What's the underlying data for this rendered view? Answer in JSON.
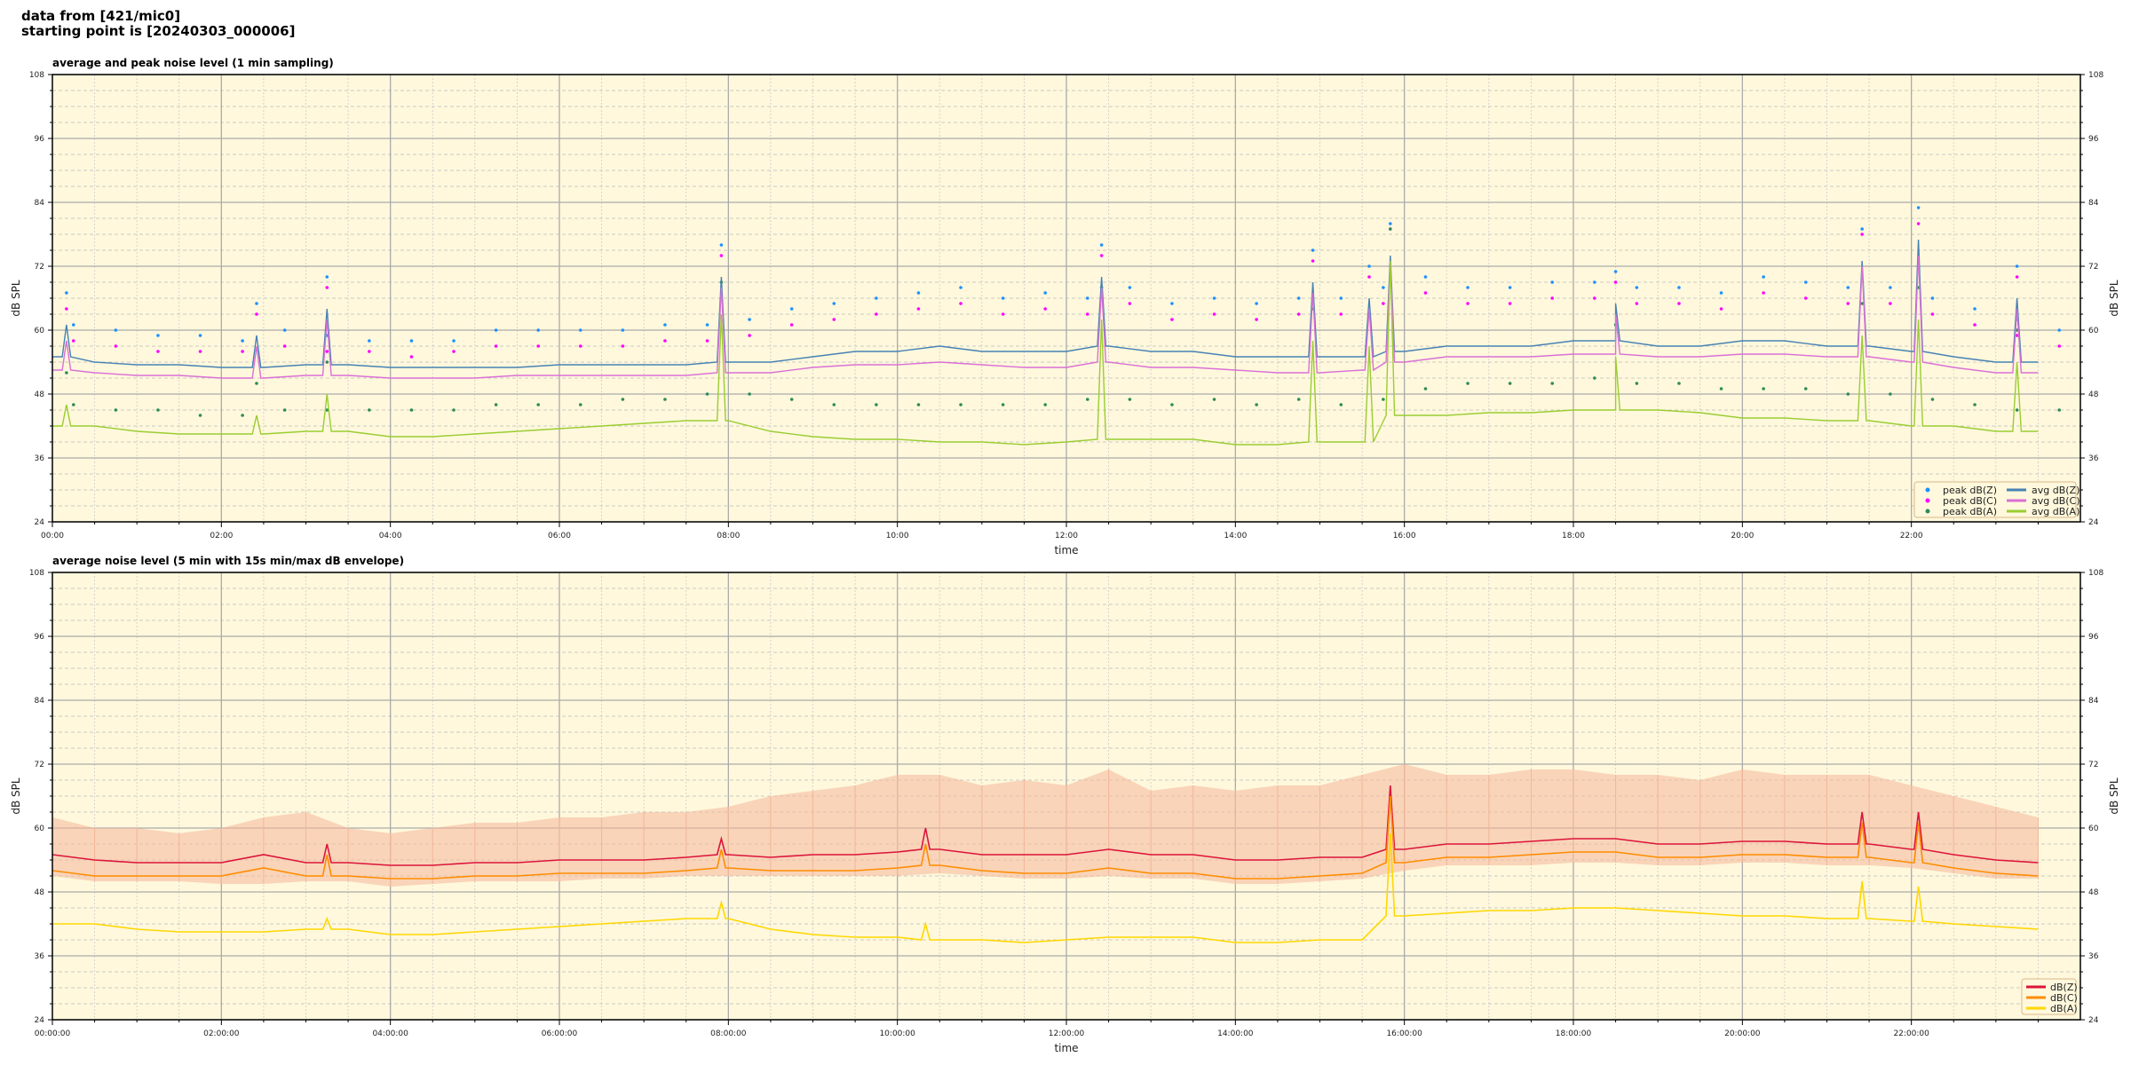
{
  "header": {
    "line1": "data from [421/mic0]",
    "line2": "starting point is [20240303_000006]"
  },
  "chart_data": [
    {
      "type": "line",
      "title": "average and peak noise level (1 min sampling)",
      "xlabel": "time",
      "ylabel": "dB SPL",
      "ylim": [
        24,
        108
      ],
      "yticks": [
        24,
        36,
        48,
        60,
        72,
        84,
        96,
        108
      ],
      "xlim_hours": [
        0,
        24
      ],
      "xticks": [
        "00:00",
        "02:00",
        "04:00",
        "06:00",
        "08:00",
        "10:00",
        "12:00",
        "14:00",
        "16:00",
        "18:00",
        "20:00",
        "22:00"
      ],
      "grid": true,
      "legend_position": "bottom-right",
      "background": "#fff8dc",
      "x": [
        "00:00",
        "00:30",
        "01:00",
        "01:30",
        "02:00",
        "02:30",
        "03:00",
        "03:30",
        "04:00",
        "04:30",
        "05:00",
        "05:30",
        "06:00",
        "06:30",
        "07:00",
        "07:30",
        "08:00",
        "08:30",
        "09:00",
        "09:30",
        "10:00",
        "10:30",
        "11:00",
        "11:30",
        "12:00",
        "12:30",
        "13:00",
        "13:30",
        "14:00",
        "14:30",
        "15:00",
        "15:30",
        "16:00",
        "16:30",
        "17:00",
        "17:30",
        "18:00",
        "18:30",
        "19:00",
        "19:30",
        "20:00",
        "20:30",
        "21:00",
        "21:30",
        "22:00",
        "22:30",
        "23:00",
        "23:30"
      ],
      "series": [
        {
          "name": "peak dB(Z)",
          "kind": "scatter",
          "color": "#1e90ff",
          "values": [
            61,
            60,
            59,
            59,
            58,
            60,
            59,
            58,
            58,
            58,
            60,
            60,
            60,
            60,
            61,
            61,
            62,
            64,
            65,
            66,
            67,
            68,
            66,
            67,
            66,
            68,
            65,
            66,
            65,
            66,
            66,
            68,
            70,
            68,
            68,
            69,
            69,
            68,
            68,
            67,
            70,
            69,
            68,
            68,
            66,
            64,
            62,
            60
          ]
        },
        {
          "name": "peak dB(C)",
          "kind": "scatter",
          "color": "#ff00ff",
          "values": [
            58,
            57,
            56,
            56,
            56,
            57,
            56,
            56,
            55,
            56,
            57,
            57,
            57,
            57,
            58,
            58,
            59,
            61,
            62,
            63,
            64,
            65,
            63,
            64,
            63,
            65,
            62,
            63,
            62,
            63,
            63,
            65,
            67,
            65,
            65,
            66,
            66,
            65,
            65,
            64,
            67,
            66,
            65,
            65,
            63,
            61,
            59,
            57
          ]
        },
        {
          "name": "peak dB(A)",
          "kind": "scatter",
          "color": "#2e8b57",
          "values": [
            46,
            45,
            45,
            44,
            44,
            45,
            45,
            45,
            45,
            45,
            46,
            46,
            46,
            47,
            47,
            48,
            48,
            47,
            46,
            46,
            46,
            46,
            46,
            46,
            47,
            47,
            46,
            47,
            46,
            47,
            46,
            47,
            49,
            50,
            50,
            50,
            51,
            50,
            50,
            49,
            49,
            49,
            48,
            48,
            47,
            46,
            45,
            45
          ]
        },
        {
          "name": "avg dB(Z)",
          "kind": "line",
          "color": "#4682b4",
          "values": [
            55,
            54,
            53.5,
            53.5,
            53,
            53,
            53.5,
            53.5,
            53,
            53,
            53,
            53,
            53.5,
            53.5,
            53.5,
            53.5,
            54,
            54,
            55,
            56,
            56,
            57,
            56,
            56,
            56,
            57,
            56,
            56,
            55,
            55,
            55,
            55,
            56,
            57,
            57,
            57,
            58,
            58,
            57,
            57,
            58,
            58,
            57,
            57,
            56,
            55,
            54,
            54
          ]
        },
        {
          "name": "avg dB(C)",
          "kind": "line",
          "color": "#da70d6",
          "values": [
            52.5,
            52,
            51.5,
            51.5,
            51,
            51,
            51.5,
            51.5,
            51,
            51,
            51,
            51.5,
            51.5,
            51.5,
            51.5,
            51.5,
            52,
            52,
            53,
            53.5,
            53.5,
            54,
            53.5,
            53,
            53,
            54,
            53,
            53,
            52.5,
            52,
            52,
            52.5,
            54,
            55,
            55,
            55,
            55.5,
            55.5,
            55,
            55,
            55.5,
            55.5,
            55,
            55,
            54,
            53,
            52,
            52
          ]
        },
        {
          "name": "avg dB(A)",
          "kind": "line",
          "color": "#9acd32",
          "values": [
            42,
            42,
            41,
            40.5,
            40.5,
            40.5,
            41,
            41,
            40,
            40,
            40.5,
            41,
            41.5,
            42,
            42.5,
            43,
            43,
            41,
            40,
            39.5,
            39.5,
            39,
            39,
            38.5,
            39,
            39.5,
            39.5,
            39.5,
            38.5,
            38.5,
            39,
            39,
            44,
            44,
            44.5,
            44.5,
            45,
            45,
            45,
            44.5,
            43.5,
            43.5,
            43,
            43,
            42,
            42,
            41,
            41
          ]
        }
      ],
      "events": [
        {
          "time": "00:10",
          "Z": 61,
          "C": 58,
          "A": 46
        },
        {
          "time": "02:25",
          "Z": 59,
          "C": 57,
          "A": 44
        },
        {
          "time": "03:15",
          "Z": 64,
          "C": 62,
          "A": 48
        },
        {
          "time": "07:55",
          "Z": 70,
          "C": 68,
          "A": 63
        },
        {
          "time": "12:25",
          "Z": 70,
          "C": 68,
          "A": 62
        },
        {
          "time": "14:55",
          "Z": 69,
          "C": 67,
          "A": 58
        },
        {
          "time": "15:35",
          "Z": 66,
          "C": 64,
          "A": 57
        },
        {
          "time": "15:50",
          "Z": 74,
          "C": 73,
          "A": 73
        },
        {
          "time": "18:30",
          "Z": 65,
          "C": 63,
          "A": 55
        },
        {
          "time": "21:25",
          "Z": 73,
          "C": 72,
          "A": 59
        },
        {
          "time": "22:05",
          "Z": 77,
          "C": 74,
          "A": 62
        },
        {
          "time": "23:15",
          "Z": 66,
          "C": 64,
          "A": 54
        }
      ]
    },
    {
      "type": "line",
      "title": "average noise level (5 min with 15s min/max dB envelope)",
      "xlabel": "time",
      "ylabel": "dB SPL",
      "ylim": [
        24,
        108
      ],
      "yticks": [
        24,
        36,
        48,
        60,
        72,
        84,
        96,
        108
      ],
      "xlim_hours": [
        0,
        24
      ],
      "xticks": [
        "00:00:00",
        "02:00:00",
        "04:00:00",
        "06:00:00",
        "08:00:00",
        "10:00:00",
        "12:00:00",
        "14:00:00",
        "16:00:00",
        "18:00:00",
        "20:00:00",
        "22:00:00"
      ],
      "grid": true,
      "legend_position": "bottom-right",
      "background": "#fff8dc",
      "x": [
        "00:00",
        "00:30",
        "01:00",
        "01:30",
        "02:00",
        "02:30",
        "03:00",
        "03:30",
        "04:00",
        "04:30",
        "05:00",
        "05:30",
        "06:00",
        "06:30",
        "07:00",
        "07:30",
        "08:00",
        "08:30",
        "09:00",
        "09:30",
        "10:00",
        "10:30",
        "11:00",
        "11:30",
        "12:00",
        "12:30",
        "13:00",
        "13:30",
        "14:00",
        "14:30",
        "15:00",
        "15:30",
        "16:00",
        "16:30",
        "17:00",
        "17:30",
        "18:00",
        "18:30",
        "19:00",
        "19:30",
        "20:00",
        "20:30",
        "21:00",
        "21:30",
        "22:00",
        "22:30",
        "23:00",
        "23:30"
      ],
      "envelope": {
        "color": "#f4b69a",
        "max": [
          62,
          60,
          60,
          59,
          60,
          62,
          63,
          60,
          59,
          60,
          61,
          61,
          62,
          62,
          63,
          63,
          64,
          66,
          67,
          68,
          70,
          70,
          68,
          69,
          68,
          71,
          67,
          68,
          67,
          68,
          68,
          70,
          72,
          70,
          70,
          71,
          71,
          70,
          70,
          69,
          71,
          70,
          70,
          70,
          68,
          66,
          64,
          62
        ],
        "min": [
          51,
          50,
          50,
          50,
          49.5,
          49.5,
          50,
          50,
          49,
          49.5,
          50,
          50,
          50,
          50.5,
          50.5,
          51,
          51,
          51,
          51,
          51,
          51,
          51.5,
          51,
          50.5,
          50.5,
          51,
          50.5,
          50.5,
          49.5,
          49.5,
          50,
          50.5,
          52,
          53,
          53,
          53,
          53.5,
          53.5,
          53,
          53,
          53.5,
          53.5,
          53,
          53,
          52.5,
          51.5,
          50.5,
          50.5
        ]
      },
      "series": [
        {
          "name": "dB(Z)",
          "color": "#dc143c",
          "values": [
            55,
            54,
            53.5,
            53.5,
            53.5,
            55,
            53.5,
            53.5,
            53,
            53,
            53.5,
            53.5,
            54,
            54,
            54,
            54.5,
            55,
            54.5,
            55,
            55,
            55.5,
            56,
            55,
            55,
            55,
            56,
            55,
            55,
            54,
            54,
            54.5,
            54.5,
            56,
            57,
            57,
            57.5,
            58,
            58,
            57,
            57,
            57.5,
            57.5,
            57,
            57,
            56,
            55,
            54,
            53.5
          ]
        },
        {
          "name": "dB(C)",
          "color": "#ff8c00",
          "values": [
            52,
            51,
            51,
            51,
            51,
            52.5,
            51,
            51,
            50.5,
            50.5,
            51,
            51,
            51.5,
            51.5,
            51.5,
            52,
            52.5,
            52,
            52,
            52,
            52.5,
            53,
            52,
            51.5,
            51.5,
            52.5,
            51.5,
            51.5,
            50.5,
            50.5,
            51,
            51.5,
            53.5,
            54.5,
            54.5,
            55,
            55.5,
            55.5,
            54.5,
            54.5,
            55,
            55,
            54.5,
            54.5,
            53.5,
            52.5,
            51.5,
            51
          ]
        },
        {
          "name": "dB(A)",
          "color": "#ffd700",
          "values": [
            42,
            42,
            41,
            40.5,
            40.5,
            40.5,
            41,
            41,
            40,
            40,
            40.5,
            41,
            41.5,
            42,
            42.5,
            43,
            43,
            41,
            40,
            39.5,
            39.5,
            39,
            39,
            38.5,
            39,
            39.5,
            39.5,
            39.5,
            38.5,
            38.5,
            39,
            39,
            43.5,
            44,
            44.5,
            44.5,
            45,
            45,
            44.5,
            44,
            43.5,
            43.5,
            43,
            43,
            42.5,
            42,
            41.5,
            41
          ]
        }
      ],
      "events": [
        {
          "time": "03:15",
          "Z": 57,
          "C": 55,
          "A": 43
        },
        {
          "time": "07:55",
          "Z": 58,
          "C": 56,
          "A": 46
        },
        {
          "time": "10:20",
          "Z": 60,
          "C": 57,
          "A": 42
        },
        {
          "time": "15:50",
          "Z": 68,
          "C": 66,
          "A": 59
        },
        {
          "time": "21:25",
          "Z": 63,
          "C": 61,
          "A": 50
        },
        {
          "time": "22:05",
          "Z": 63,
          "C": 61,
          "A": 49
        }
      ]
    }
  ]
}
